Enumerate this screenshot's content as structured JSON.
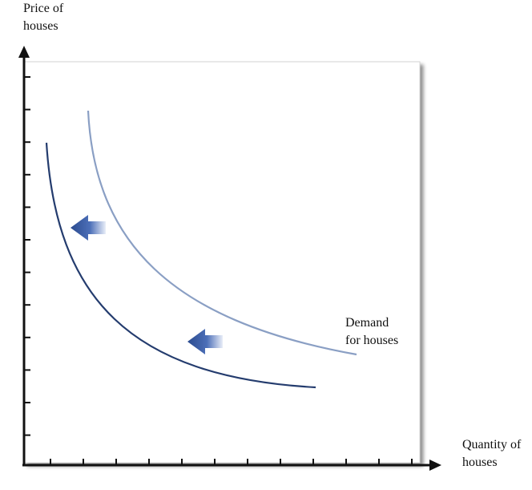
{
  "diagram": {
    "y_axis_label": "Price of\nhouses",
    "x_axis_label": "Quantity of\nhouses",
    "curve_label": "Demand\nfor houses",
    "curves": [
      {
        "id": "original-demand",
        "color": "#8a9fc4"
      },
      {
        "id": "shifted-demand",
        "color": "#243c6e"
      }
    ],
    "shift_direction": "left",
    "colors": {
      "axis": "#111111",
      "panel": "#ffffff",
      "arrow_dark": "#2b4b8f",
      "arrow_light": "#ffffff"
    }
  }
}
